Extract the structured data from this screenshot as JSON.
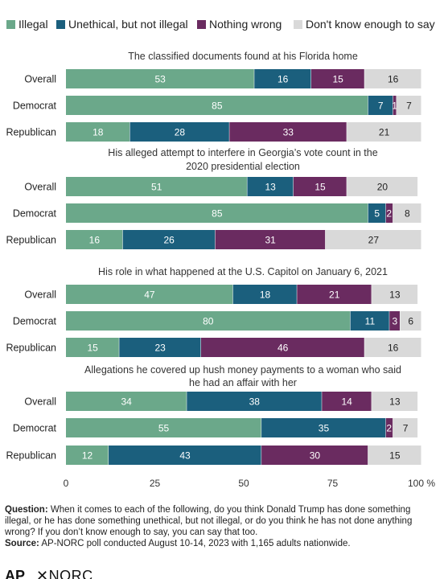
{
  "legend": [
    {
      "label": "Illegal",
      "color": "#6ba88a"
    },
    {
      "label": "Unethical, but not illegal",
      "color": "#1b5f7d"
    },
    {
      "label": "Nothing wrong",
      "color": "#6a2b60"
    },
    {
      "label": "Don't know enough to say",
      "color": "#d9d9d9"
    }
  ],
  "chart_data": {
    "type": "bar",
    "orientation": "horizontal-stacked",
    "series_names": [
      "Illegal",
      "Unethical, but not illegal",
      "Nothing wrong",
      "Don't know enough to say"
    ],
    "colors": [
      "#6ba88a",
      "#1b5f7d",
      "#6a2b60",
      "#d9d9d9"
    ],
    "xlim": [
      0,
      100
    ],
    "x_ticks": [
      "0",
      "25",
      "50",
      "75",
      "100 %"
    ],
    "groups": [
      {
        "title": "The classified documents found at his Florida home",
        "rows": [
          {
            "label": "Overall",
            "values": [
              53,
              16,
              15,
              16
            ]
          },
          {
            "label": "Democrat",
            "values": [
              85,
              7,
              1,
              7
            ]
          },
          {
            "label": "Republican",
            "values": [
              18,
              28,
              33,
              21
            ]
          }
        ]
      },
      {
        "title": "His alleged attempt to interfere in Georgia’s vote count in the 2020 presidential election",
        "rows": [
          {
            "label": "Overall",
            "values": [
              51,
              13,
              15,
              20
            ]
          },
          {
            "label": "Democrat",
            "values": [
              85,
              5,
              2,
              8
            ]
          },
          {
            "label": "Republican",
            "values": [
              16,
              26,
              31,
              27
            ]
          }
        ]
      },
      {
        "title": "His role in what happened at the U.S. Capitol on January 6, 2021",
        "rows": [
          {
            "label": "Overall",
            "values": [
              47,
              18,
              21,
              13
            ]
          },
          {
            "label": "Democrat",
            "values": [
              80,
              11,
              3,
              6
            ]
          },
          {
            "label": "Republican",
            "values": [
              15,
              23,
              46,
              16
            ]
          }
        ]
      },
      {
        "title": "Allegations he covered up hush money payments to a woman who said he had an affair with her",
        "rows": [
          {
            "label": "Overall",
            "values": [
              34,
              38,
              14,
              13
            ]
          },
          {
            "label": "Democrat",
            "values": [
              55,
              35,
              2,
              7
            ]
          },
          {
            "label": "Republican",
            "values": [
              12,
              43,
              30,
              15
            ]
          }
        ]
      }
    ]
  },
  "footnote": {
    "question_label": "Question:",
    "question_text": " When it comes to each of the following, do you think Donald Trump has done something illegal, or he has done something unethical, but not illegal, or do you think he has not done anything wrong? If you don’t know enough to say, you can say that too.",
    "source_label": "Source:",
    "source_text": " AP-NORC poll conducted August 10-14, 2023 with 1,165 adults nationwide."
  },
  "logos": {
    "ap": "AP",
    "norc": "✕NORC"
  }
}
